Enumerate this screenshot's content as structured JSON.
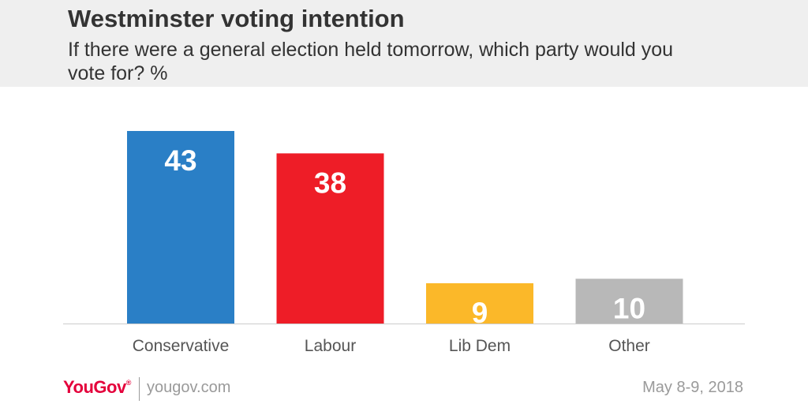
{
  "title": "Westminster voting intention",
  "subtitle": "If there were a general election held tomorrow, which party would you vote for? %",
  "chart_data": {
    "type": "bar",
    "categories": [
      "Conservative",
      "Labour",
      "Lib Dem",
      "Other"
    ],
    "values": [
      43,
      38,
      9,
      10
    ],
    "colors": [
      "#2a7fc6",
      "#ee1d27",
      "#fbb829",
      "#b8b8b8"
    ],
    "ylim": [
      0,
      43
    ],
    "grid": false,
    "data_labels": true
  },
  "footer": {
    "logo": "YouGov",
    "site": "yougov.com",
    "date": "May 8-9, 2018"
  }
}
